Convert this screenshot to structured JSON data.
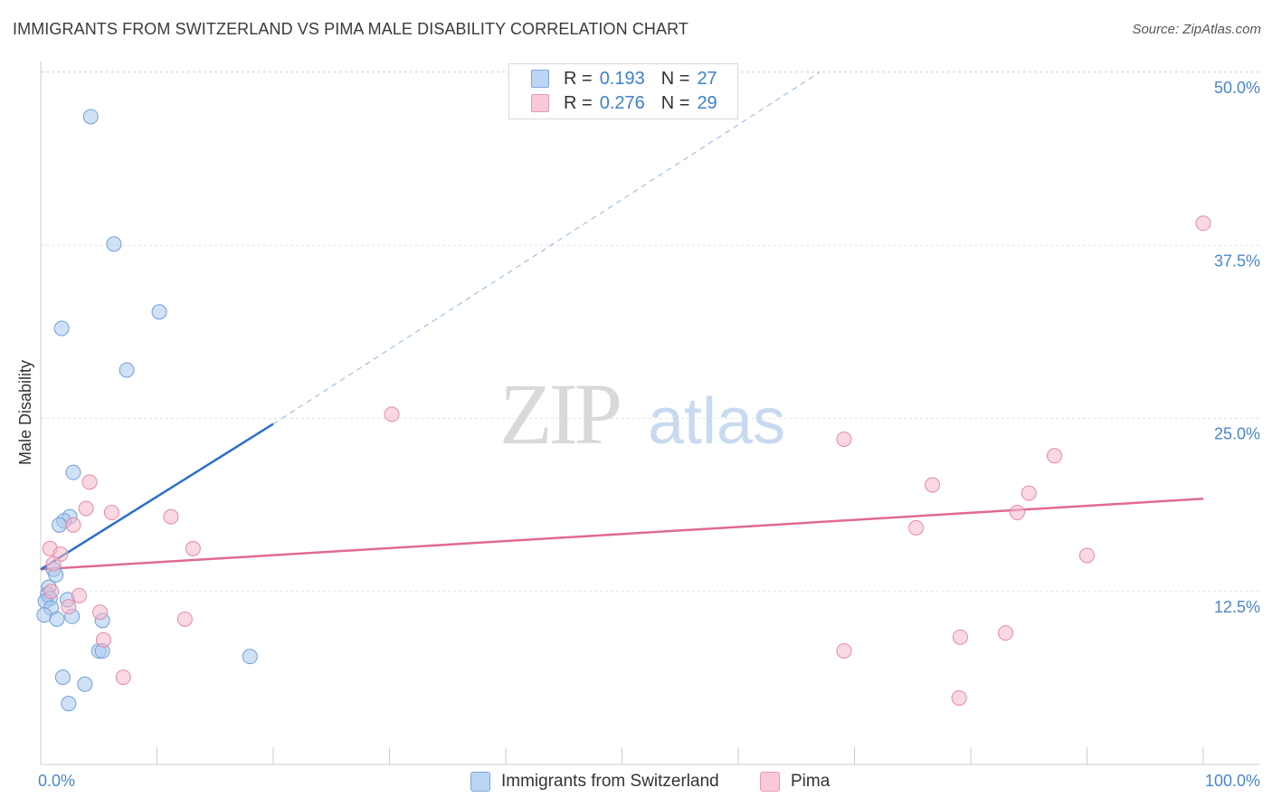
{
  "title": "IMMIGRANTS FROM SWITZERLAND VS PIMA MALE DISABILITY CORRELATION CHART",
  "source": "Source: ZipAtlas.com",
  "legend": {
    "r_label": "R =",
    "n_label": "N =",
    "series1": {
      "r": "0.193",
      "n": "27"
    },
    "series2": {
      "r": "0.276",
      "n": "29"
    }
  },
  "watermark": {
    "zip": "ZIP",
    "atlas": "atlas"
  },
  "chart_data": {
    "type": "scatter",
    "title": "IMMIGRANTS FROM SWITZERLAND VS PIMA MALE DISABILITY CORRELATION CHART",
    "xlabel": "",
    "ylabel": "Male Disability",
    "xlim": [
      0,
      100
    ],
    "ylim": [
      0,
      50
    ],
    "x_tick_labels": [
      "0.0%",
      "100.0%"
    ],
    "y_ticks": [
      12.5,
      25.0,
      37.5,
      50.0
    ],
    "y_tick_labels": [
      "12.5%",
      "25.0%",
      "37.5%",
      "50.0%"
    ],
    "grid": true,
    "legend_position": "top-center",
    "series": [
      {
        "name": "Immigrants from Switzerland",
        "color": "#a9c8ef",
        "edge": "#6f9fd8",
        "trend_color": "#2e6fcb",
        "trend": {
          "x0": 0,
          "y0": 14.1,
          "x1": 20,
          "y1": 24.6,
          "extend_to_x": 67,
          "extend_to_y": 50.0
        },
        "points": [
          [
            4.3,
            46.8
          ],
          [
            6.3,
            37.6
          ],
          [
            1.8,
            31.5
          ],
          [
            10.2,
            32.7
          ],
          [
            7.4,
            28.5
          ],
          [
            2.8,
            21.1
          ],
          [
            2.5,
            17.9
          ],
          [
            2.0,
            17.6
          ],
          [
            1.6,
            17.3
          ],
          [
            1.1,
            14.1
          ],
          [
            1.3,
            13.7
          ],
          [
            0.7,
            12.8
          ],
          [
            0.6,
            12.3
          ],
          [
            0.8,
            12.0
          ],
          [
            0.4,
            11.8
          ],
          [
            0.9,
            11.3
          ],
          [
            2.3,
            11.9
          ],
          [
            0.3,
            10.8
          ],
          [
            1.4,
            10.5
          ],
          [
            2.7,
            10.7
          ],
          [
            5.3,
            10.4
          ],
          [
            5.0,
            8.2
          ],
          [
            5.3,
            8.2
          ],
          [
            18.0,
            7.8
          ],
          [
            1.9,
            6.3
          ],
          [
            3.8,
            5.8
          ],
          [
            2.4,
            4.4
          ]
        ]
      },
      {
        "name": "Pima",
        "color": "#f6b8cb",
        "edge": "#e58aa8",
        "trend_color": "#e06a92",
        "trend": {
          "x0": 0,
          "y0": 14.1,
          "x1": 100,
          "y1": 19.2
        },
        "points": [
          [
            100.0,
            39.1
          ],
          [
            30.2,
            25.3
          ],
          [
            69.1,
            23.5
          ],
          [
            87.2,
            22.3
          ],
          [
            76.7,
            20.2
          ],
          [
            85.0,
            19.6
          ],
          [
            84.0,
            18.2
          ],
          [
            75.3,
            17.1
          ],
          [
            90.0,
            15.1
          ],
          [
            4.2,
            20.4
          ],
          [
            3.9,
            18.5
          ],
          [
            6.1,
            18.2
          ],
          [
            11.2,
            17.9
          ],
          [
            2.8,
            17.3
          ],
          [
            0.8,
            15.6
          ],
          [
            1.7,
            15.2
          ],
          [
            1.1,
            14.5
          ],
          [
            13.1,
            15.6
          ],
          [
            3.3,
            12.2
          ],
          [
            2.4,
            11.4
          ],
          [
            5.1,
            11.0
          ],
          [
            12.4,
            10.5
          ],
          [
            5.4,
            9.0
          ],
          [
            69.1,
            8.2
          ],
          [
            79.1,
            9.2
          ],
          [
            83.0,
            9.5
          ],
          [
            7.1,
            6.3
          ],
          [
            79.0,
            4.8
          ],
          [
            0.9,
            12.5
          ]
        ]
      }
    ]
  }
}
